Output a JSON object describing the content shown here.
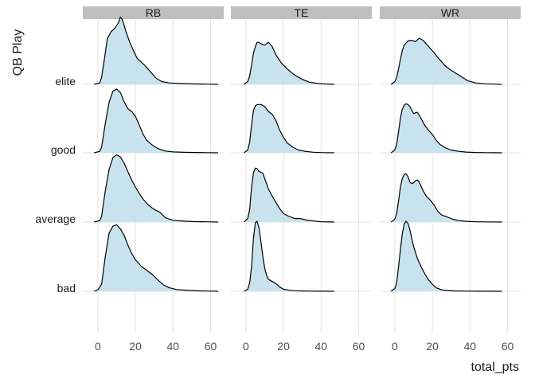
{
  "chart_data": {
    "type": "ridgeline",
    "xlabel": "total_pts",
    "ylabel": "QB Play",
    "panels": [
      "RB",
      "TE",
      "WR"
    ],
    "categories": [
      "elite",
      "good",
      "average",
      "bad"
    ],
    "xlim": [
      -8,
      67
    ],
    "xticks": [
      0,
      20,
      40,
      60
    ],
    "grid": true,
    "fill_color": "#c5e2ec",
    "line_color": "#000000",
    "strip_color": "#bfbfbf",
    "grid_color": "#e3e3e3",
    "densities": {
      "RB": {
        "elite": {
          "x": [
            -2,
            1,
            2,
            4,
            5,
            7,
            9,
            11,
            12,
            13,
            15,
            17,
            19,
            21,
            23,
            25,
            28,
            31,
            34,
            38,
            42,
            46,
            52,
            58,
            64
          ],
          "y": [
            0,
            0.02,
            0.1,
            0.45,
            0.65,
            0.75,
            0.8,
            0.88,
            0.96,
            0.93,
            0.75,
            0.6,
            0.48,
            0.37,
            0.32,
            0.27,
            0.18,
            0.09,
            0.04,
            0.02,
            0.015,
            0.01,
            0.006,
            0.003,
            0
          ]
        },
        "good": {
          "x": [
            -2,
            1,
            2,
            4,
            6,
            8,
            10,
            12,
            14,
            16,
            18,
            20,
            22,
            24,
            26,
            29,
            32,
            36,
            40,
            46,
            52,
            58,
            64
          ],
          "y": [
            0,
            0.02,
            0.08,
            0.42,
            0.72,
            0.88,
            0.91,
            0.86,
            0.73,
            0.63,
            0.59,
            0.52,
            0.4,
            0.27,
            0.18,
            0.11,
            0.06,
            0.025,
            0.012,
            0.007,
            0.004,
            0.002,
            0
          ]
        },
        "average": {
          "x": [
            -2,
            1,
            2,
            4,
            6,
            8,
            10,
            12,
            14,
            16,
            18,
            20,
            22,
            24,
            27,
            30,
            33,
            36,
            40,
            46,
            52,
            58,
            64
          ],
          "y": [
            0,
            0.02,
            0.08,
            0.45,
            0.75,
            0.92,
            0.96,
            0.93,
            0.84,
            0.72,
            0.6,
            0.5,
            0.41,
            0.33,
            0.24,
            0.18,
            0.14,
            0.06,
            0.025,
            0.012,
            0.006,
            0.003,
            0
          ]
        },
        "bad": {
          "x": [
            -2,
            0,
            2,
            4,
            6,
            8,
            10,
            12,
            14,
            16,
            18,
            20,
            23,
            26,
            29,
            32,
            35,
            38,
            42,
            48,
            54,
            60,
            64
          ],
          "y": [
            0,
            0.02,
            0.1,
            0.5,
            0.83,
            0.93,
            0.95,
            0.89,
            0.8,
            0.66,
            0.54,
            0.45,
            0.36,
            0.3,
            0.24,
            0.16,
            0.09,
            0.05,
            0.025,
            0.012,
            0.006,
            0.002,
            0
          ]
        }
      },
      "TE": {
        "elite": {
          "x": [
            -1,
            1,
            2,
            3,
            4,
            5,
            6,
            7,
            8,
            10,
            12,
            14,
            16,
            19,
            22,
            25,
            28,
            31,
            34,
            38,
            42,
            47
          ],
          "y": [
            0,
            0.04,
            0.12,
            0.28,
            0.44,
            0.54,
            0.6,
            0.6,
            0.58,
            0.56,
            0.6,
            0.54,
            0.42,
            0.3,
            0.22,
            0.15,
            0.1,
            0.06,
            0.03,
            0.015,
            0.006,
            0
          ]
        },
        "good": {
          "x": [
            -1,
            1,
            2,
            3,
            4,
            5,
            6,
            8,
            10,
            12,
            14,
            16,
            18,
            20,
            22,
            25,
            28,
            32,
            36,
            40,
            47
          ],
          "y": [
            0,
            0.04,
            0.15,
            0.4,
            0.6,
            0.67,
            0.69,
            0.69,
            0.66,
            0.59,
            0.55,
            0.46,
            0.32,
            0.22,
            0.14,
            0.08,
            0.04,
            0.018,
            0.008,
            0.003,
            0
          ]
        },
        "average": {
          "x": [
            -1,
            1,
            2,
            3,
            4,
            5,
            6,
            7,
            8,
            9,
            10,
            12,
            14,
            16,
            18,
            20,
            23,
            26,
            29,
            32,
            36,
            40,
            47
          ],
          "y": [
            0,
            0.05,
            0.18,
            0.5,
            0.7,
            0.77,
            0.76,
            0.72,
            0.71,
            0.7,
            0.62,
            0.47,
            0.37,
            0.28,
            0.19,
            0.12,
            0.08,
            0.05,
            0.05,
            0.03,
            0.015,
            0.005,
            0
          ]
        },
        "bad": {
          "x": [
            -1,
            1,
            2,
            3,
            4,
            5,
            6,
            7,
            8,
            9,
            10,
            11,
            12,
            14,
            16,
            18,
            20,
            23,
            26,
            30,
            34,
            40,
            47
          ],
          "y": [
            0,
            0.03,
            0.12,
            0.35,
            0.75,
            0.98,
            1.0,
            0.9,
            0.7,
            0.5,
            0.33,
            0.23,
            0.17,
            0.14,
            0.11,
            0.06,
            0.03,
            0.015,
            0.008,
            0.004,
            0.002,
            0.001,
            0
          ]
        }
      },
      "WR": {
        "elite": {
          "x": [
            -2,
            0,
            1,
            2,
            3,
            4,
            5,
            7,
            9,
            11,
            13,
            15,
            17,
            19,
            21,
            23,
            25,
            27,
            30,
            33,
            36,
            39,
            43,
            48,
            53,
            57
          ],
          "y": [
            0,
            0.04,
            0.1,
            0.22,
            0.36,
            0.48,
            0.56,
            0.62,
            0.63,
            0.61,
            0.66,
            0.63,
            0.57,
            0.51,
            0.45,
            0.38,
            0.32,
            0.26,
            0.2,
            0.15,
            0.1,
            0.05,
            0.02,
            0.008,
            0.003,
            0
          ]
        },
        "good": {
          "x": [
            -2,
            0,
            1,
            2,
            3,
            4,
            5,
            6,
            7,
            8,
            10,
            12,
            14,
            16,
            18,
            20,
            22,
            24,
            27,
            30,
            34,
            38,
            43,
            48,
            53,
            57
          ],
          "y": [
            0,
            0.04,
            0.12,
            0.3,
            0.5,
            0.62,
            0.68,
            0.7,
            0.69,
            0.66,
            0.56,
            0.58,
            0.49,
            0.39,
            0.32,
            0.26,
            0.18,
            0.12,
            0.07,
            0.04,
            0.02,
            0.01,
            0.005,
            0.002,
            0.001,
            0
          ]
        },
        "average": {
          "x": [
            -2,
            0,
            1,
            2,
            3,
            4,
            5,
            6,
            7,
            8,
            9,
            10,
            11,
            12,
            13,
            15,
            17,
            19,
            21,
            23,
            25,
            28,
            31,
            34,
            38,
            43,
            48,
            57
          ],
          "y": [
            0,
            0.04,
            0.12,
            0.3,
            0.5,
            0.62,
            0.68,
            0.69,
            0.65,
            0.57,
            0.55,
            0.56,
            0.59,
            0.6,
            0.57,
            0.45,
            0.36,
            0.31,
            0.24,
            0.15,
            0.1,
            0.07,
            0.04,
            0.02,
            0.01,
            0.004,
            0.002,
            0
          ]
        },
        "bad": {
          "x": [
            -2,
            0,
            1,
            2,
            3,
            4,
            5,
            6,
            7,
            8,
            9,
            10,
            12,
            14,
            16,
            18,
            20,
            22,
            25,
            28,
            32,
            38,
            45,
            57
          ],
          "y": [
            0,
            0.04,
            0.12,
            0.35,
            0.6,
            0.82,
            0.96,
            1.0,
            0.97,
            0.88,
            0.76,
            0.64,
            0.47,
            0.35,
            0.25,
            0.16,
            0.1,
            0.05,
            0.02,
            0.01,
            0.005,
            0.002,
            0.001,
            0
          ]
        }
      }
    }
  }
}
